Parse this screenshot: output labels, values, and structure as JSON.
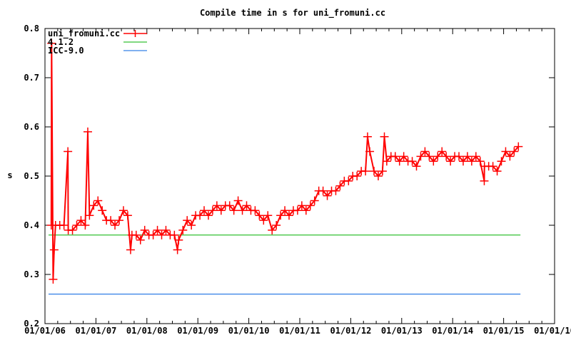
{
  "chart_data": {
    "type": "line",
    "title": "Compile time in s for uni_fromuni.cc",
    "xlabel": "",
    "ylabel": "s",
    "ylim": [
      0.2,
      0.8
    ],
    "xlim": [
      2006,
      2016
    ],
    "yticks": [
      "0.2",
      "0.3",
      "0.4",
      "0.5",
      "0.6",
      "0.7",
      "0.8"
    ],
    "xticks": [
      "01/01/06",
      "01/01/07",
      "01/01/08",
      "01/01/09",
      "01/01/10",
      "01/01/11",
      "01/01/12",
      "01/01/13",
      "01/01/14",
      "01/01/15",
      "01/01/16"
    ],
    "grid": false,
    "legend_position": "top-left",
    "series": [
      {
        "name": "uni_fromuni.cc",
        "color": "#ff0000",
        "style": "linespoints",
        "start_year": 2006,
        "start_month": 2,
        "monthly_values": [
          0.4,
          0.4,
          0.4,
          0.4,
          0.39,
          0.39,
          0.4,
          0.41,
          0.4,
          0.42,
          0.44,
          0.45,
          0.43,
          0.41,
          0.41,
          0.4,
          0.41,
          0.43,
          0.42,
          0.38,
          0.38,
          0.37,
          0.39,
          0.38,
          0.38,
          0.39,
          0.38,
          0.39,
          0.38,
          0.38,
          0.37,
          0.39,
          0.41,
          0.4,
          0.42,
          0.42,
          0.43,
          0.42,
          0.43,
          0.44,
          0.43,
          0.44,
          0.44,
          0.43,
          0.45,
          0.43,
          0.44,
          0.43,
          0.43,
          0.42,
          0.41,
          0.42,
          0.39,
          0.4,
          0.42,
          0.43,
          0.42,
          0.43,
          0.43,
          0.44,
          0.43,
          0.44,
          0.45,
          0.47,
          0.47,
          0.46,
          0.47,
          0.47,
          0.48,
          0.49,
          0.49,
          0.5,
          0.5,
          0.51,
          0.51,
          0.55,
          0.51,
          0.5,
          0.51,
          0.53,
          0.54,
          0.54,
          0.53,
          0.54,
          0.53,
          0.53,
          0.52,
          0.54,
          0.55,
          0.54,
          0.53,
          0.54,
          0.55,
          0.54,
          0.53,
          0.54,
          0.54,
          0.53,
          0.54,
          0.53,
          0.54,
          0.53,
          0.52,
          0.52,
          0.52,
          0.51,
          0.53,
          0.55,
          0.54,
          0.55,
          0.56
        ],
        "spikes": [
          [
            2006.13,
            0.77
          ],
          [
            2006.16,
            0.29
          ],
          [
            2006.18,
            0.35
          ],
          [
            2006.45,
            0.55
          ],
          [
            2006.84,
            0.59
          ],
          [
            2007.68,
            0.35
          ],
          [
            2008.6,
            0.35
          ],
          [
            2012.33,
            0.58
          ],
          [
            2012.66,
            0.58
          ],
          [
            2014.62,
            0.49
          ]
        ]
      },
      {
        "name": "4.1.2",
        "color": "#00b000",
        "style": "lines",
        "x": [
          2006.07,
          2015.33
        ],
        "y": [
          0.38,
          0.38
        ]
      },
      {
        "name": "ICC-9.0",
        "color": "#0060e0",
        "style": "lines",
        "x": [
          2006.07,
          2015.33
        ],
        "y": [
          0.26,
          0.26
        ]
      }
    ]
  }
}
